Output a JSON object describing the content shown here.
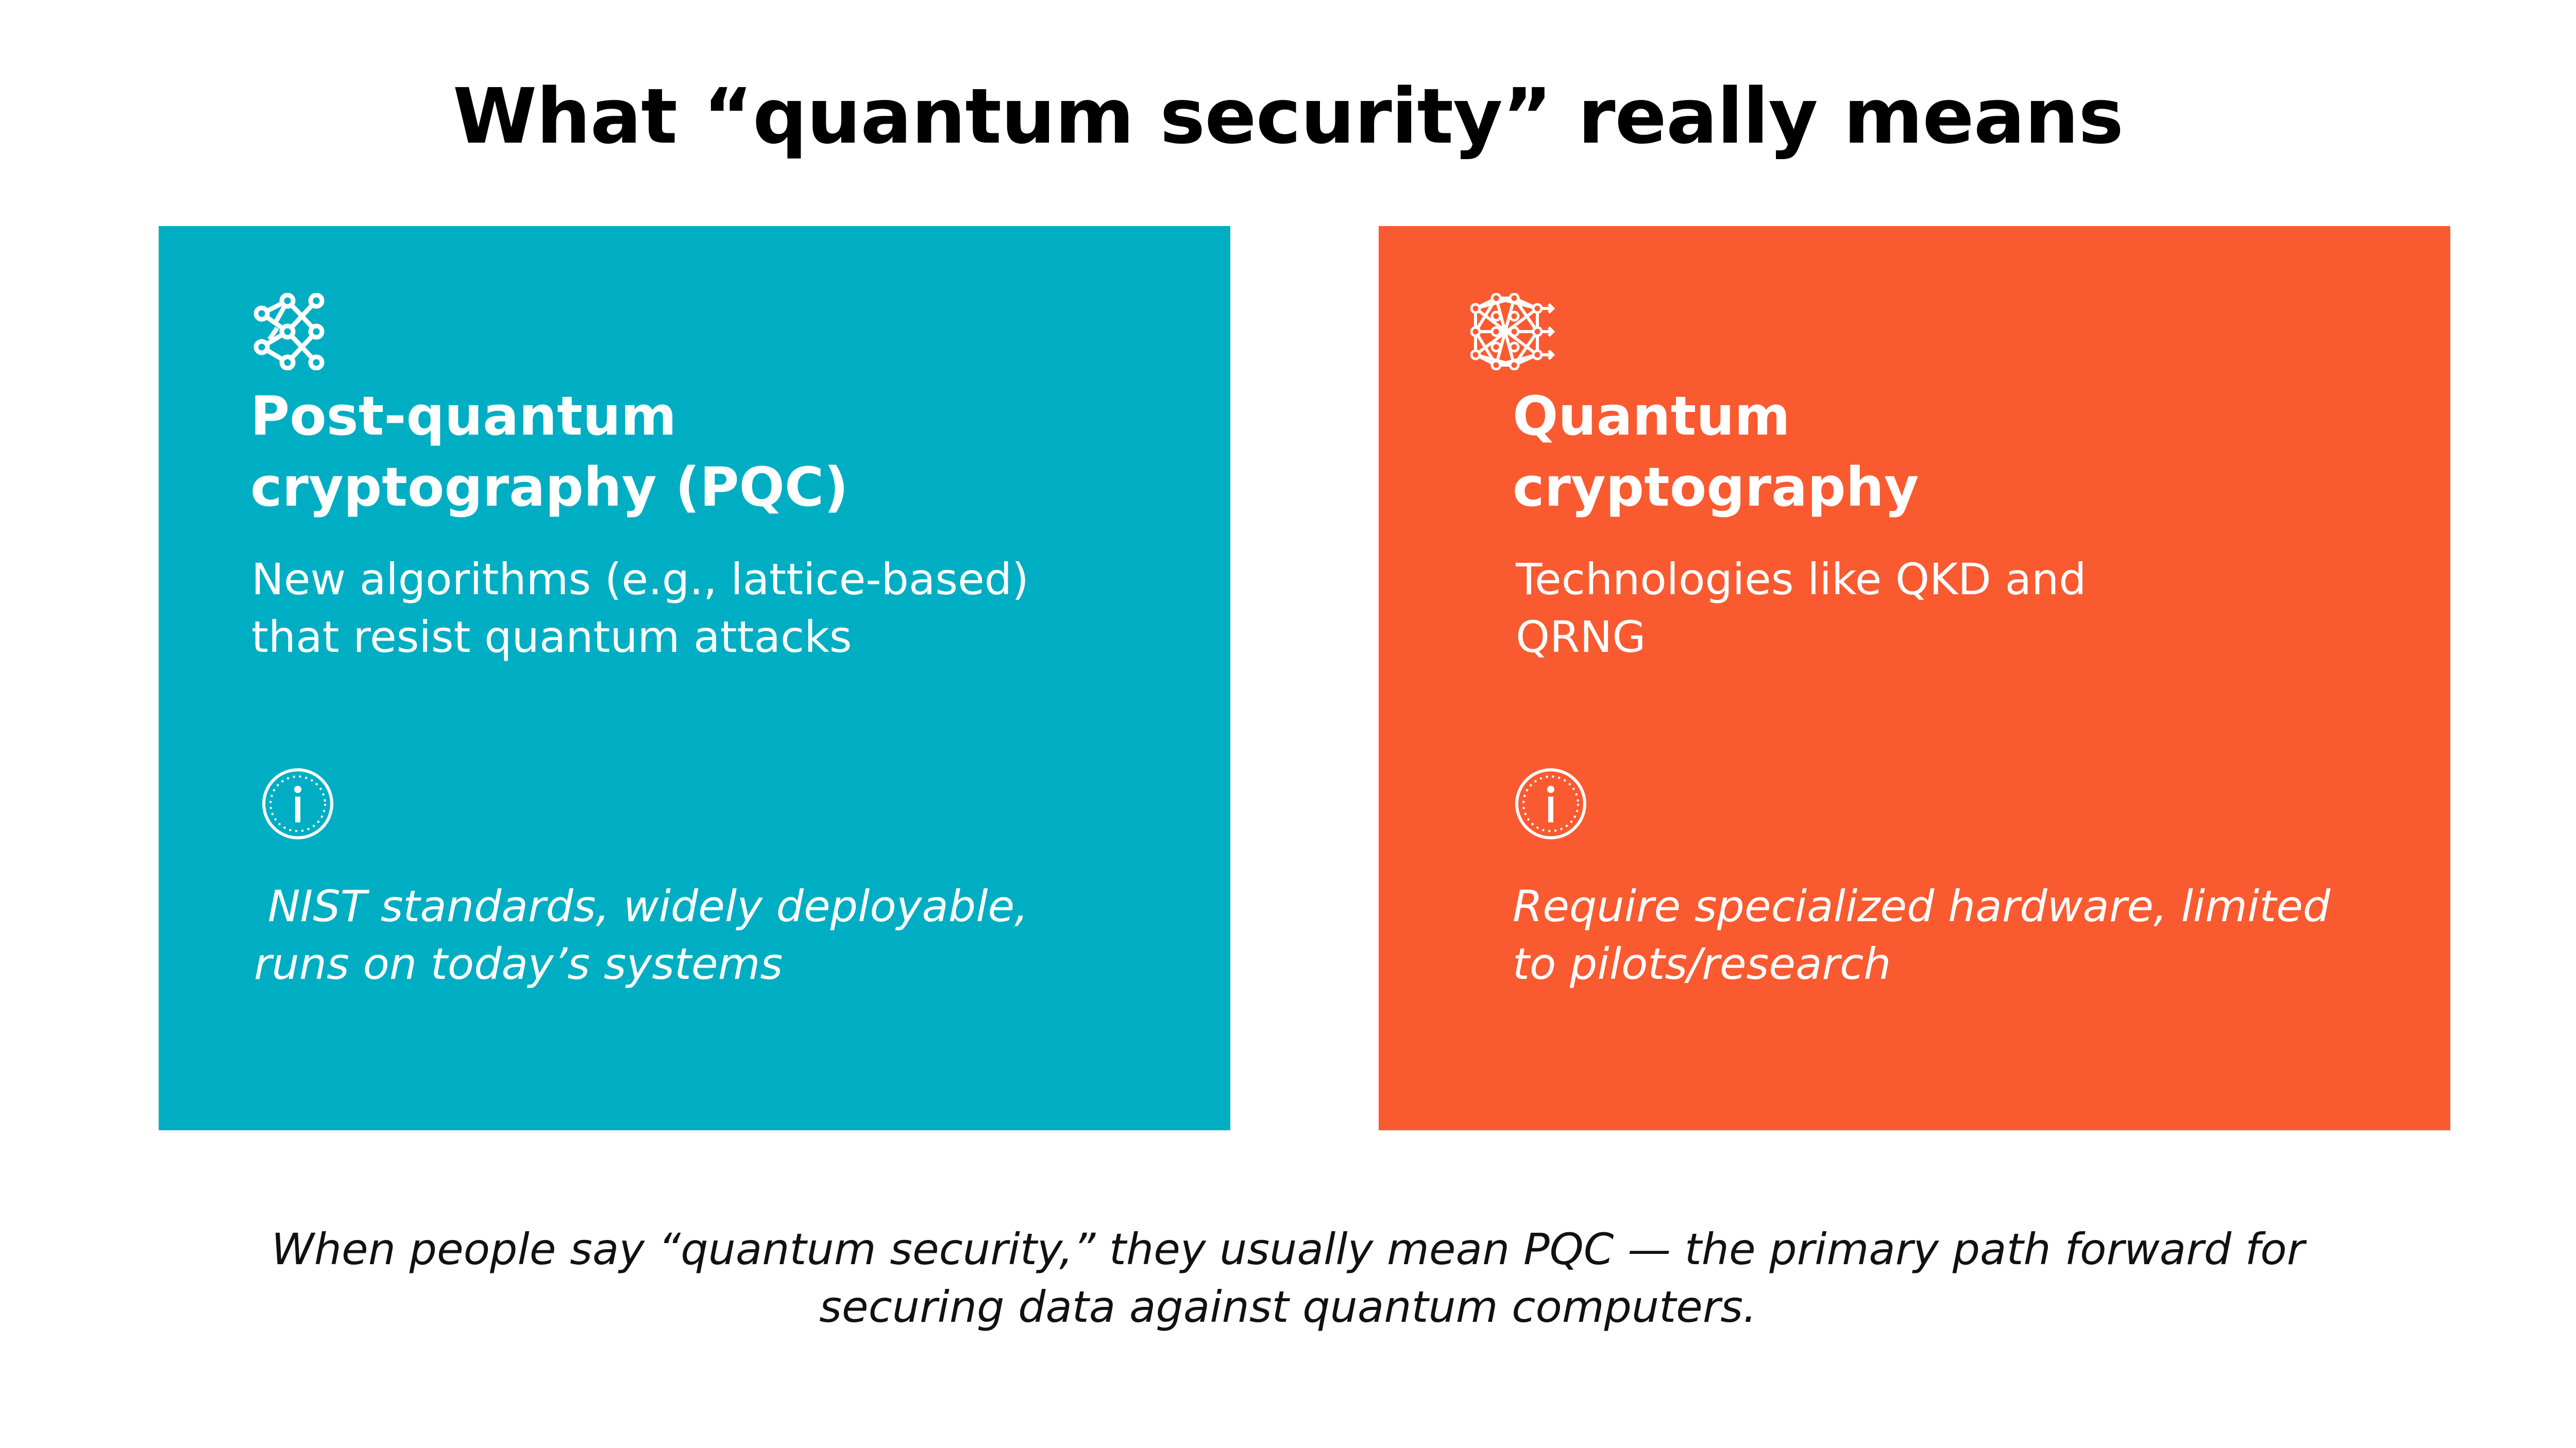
{
  "title": "What “quantum security” really means",
  "colors": {
    "pqc_card": "#00AEC3",
    "qc_card": "#FA5A30"
  },
  "cards": [
    {
      "icon": "network-nodes-icon",
      "heading_line1": "Post-quantum",
      "heading_line2": "cryptography (PQC)",
      "body_line1": "New algorithms (e.g., lattice-based)",
      "body_line2": "that resist quantum attacks",
      "info_icon": "info-icon",
      "note_line1": " NIST standards, widely deployable,",
      "note_line2": "runs on today’s systems"
    },
    {
      "icon": "neural-mesh-icon",
      "heading_line1": "Quantum",
      "heading_line2": "cryptography",
      "body_line1": "Technologies like QKD and",
      "body_line2": "QRNG",
      "info_icon": "info-icon",
      "note_line1": "Require specialized hardware, limited",
      "note_line2": "to pilots/research"
    }
  ],
  "footer_line1": "When people say “quantum security,” they usually mean PQC — the primary path forward for",
  "footer_line2": "securing data against quantum computers."
}
